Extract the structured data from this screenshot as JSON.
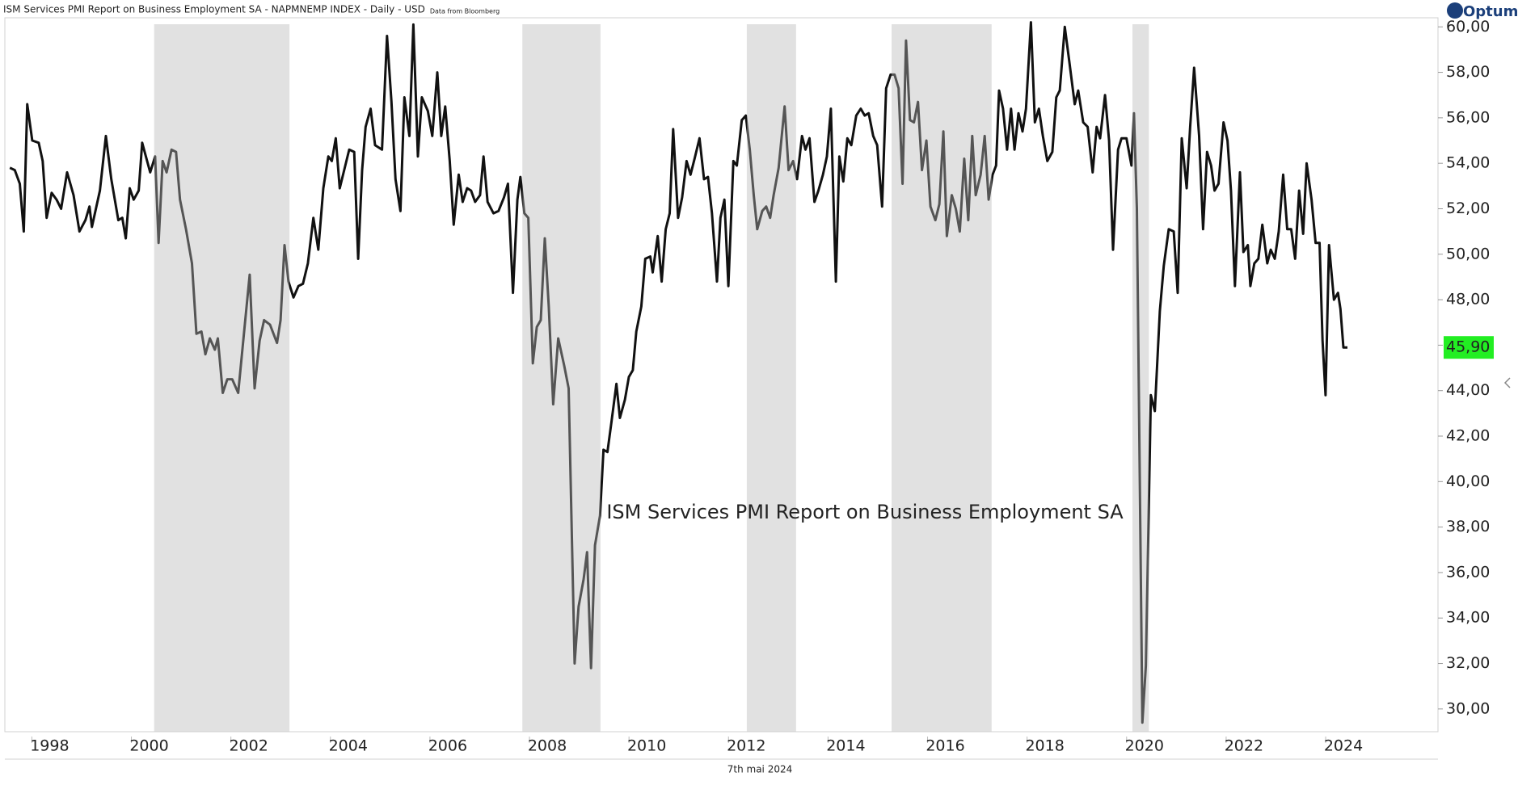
{
  "header": {
    "title": "ISM Services PMI Report on Business Employment SA - NAPMNEMP INDEX - Daily - USD",
    "source": "Data from Bloomberg",
    "logo": "Optuma",
    "date": "7th mai 2024"
  },
  "chart_data": {
    "type": "line",
    "annotation": "ISM Services PMI Report on Business Employment SA",
    "xlim": [
      1997.1,
      2025.9
    ],
    "ylim": [
      29,
      60.4
    ],
    "xticks": [
      1998,
      2000,
      2002,
      2004,
      2006,
      2008,
      2010,
      2012,
      2014,
      2016,
      2018,
      2020,
      2022,
      2024
    ],
    "yticks": [
      {
        "value": 30,
        "label": "30,00"
      },
      {
        "value": 32,
        "label": "32,00"
      },
      {
        "value": 34,
        "label": "34,00"
      },
      {
        "value": 36,
        "label": "36,00"
      },
      {
        "value": 38,
        "label": "38,00"
      },
      {
        "value": 40,
        "label": "40,00"
      },
      {
        "value": 42,
        "label": "42,00"
      },
      {
        "value": 44,
        "label": "44,00"
      },
      {
        "value": 46,
        "label": "46,00"
      },
      {
        "value": 48,
        "label": "48,00"
      },
      {
        "value": 50,
        "label": "50,00"
      },
      {
        "value": 52,
        "label": "52,00"
      },
      {
        "value": 54,
        "label": "54,00"
      },
      {
        "value": 56,
        "label": "56,00"
      },
      {
        "value": 58,
        "label": "58,00"
      },
      {
        "value": 60,
        "label": "60,00"
      }
    ],
    "shaded_ranges": [
      [
        2000.1,
        2002.82
      ],
      [
        2007.5,
        2009.07
      ],
      [
        2012.01,
        2013.0
      ],
      [
        2014.92,
        2016.93
      ],
      [
        2019.76,
        2020.09
      ]
    ],
    "shade_color": "#e1e1e1",
    "shaded_line_color": "#555555",
    "last_value_label": "45,90",
    "last_value_color": "#22ee22",
    "series": [
      {
        "name": "NAPMNEMP INDEX",
        "color": "#111111",
        "x": [
          1997.2,
          1997.3,
          1997.4,
          1997.48,
          1997.55,
          1997.65,
          1997.78,
          1997.86,
          1997.94,
          1998.04,
          1998.14,
          1998.23,
          1998.35,
          1998.48,
          1998.6,
          1998.72,
          1998.8,
          1998.85,
          1999.01,
          1999.13,
          1999.24,
          1999.38,
          1999.46,
          1999.53,
          1999.61,
          1999.69,
          1999.79,
          1999.86,
          2000.02,
          2000.12,
          2000.19,
          2000.27,
          2000.35,
          2000.45,
          2000.54,
          2000.62,
          2000.74,
          2000.86,
          2000.95,
          2001.05,
          2001.13,
          2001.22,
          2001.32,
          2001.38,
          2001.48,
          2001.57,
          2001.67,
          2001.79,
          2001.9,
          2002.02,
          2002.12,
          2002.22,
          2002.31,
          2002.43,
          2002.57,
          2002.64,
          2002.72,
          2002.8,
          2002.9,
          2003.0,
          2003.09,
          2003.19,
          2003.3,
          2003.4,
          2003.5,
          2003.6,
          2003.67,
          2003.75,
          2003.83,
          2003.93,
          2004.02,
          2004.12,
          2004.2,
          2004.28,
          2004.35,
          2004.45,
          2004.54,
          2004.68,
          2004.78,
          2004.87,
          2004.95,
          2005.05,
          2005.13,
          2005.23,
          2005.31,
          2005.4,
          2005.48,
          2005.6,
          2005.69,
          2005.79,
          2005.87,
          2005.95,
          2006.04,
          2006.12,
          2006.22,
          2006.3,
          2006.39,
          2006.47,
          2006.55,
          2006.65,
          2006.72,
          2006.8,
          2006.92,
          2007.02,
          2007.13,
          2007.21,
          2007.31,
          2007.4,
          2007.46,
          2007.54,
          2007.62,
          2007.71,
          2007.79,
          2007.87,
          2007.95,
          2008.03,
          2008.12,
          2008.22,
          2008.34,
          2008.43,
          2008.55,
          2008.63,
          2008.73,
          2008.8,
          2008.88,
          2008.96,
          2009.06,
          2009.13,
          2009.21,
          2009.29,
          2009.39,
          2009.46,
          2009.56,
          2009.64,
          2009.72,
          2009.79,
          2009.89,
          2009.97,
          2010.07,
          2010.12,
          2010.22,
          2010.3,
          2010.38,
          2010.46,
          2010.53,
          2010.63,
          2010.71,
          2010.8,
          2010.88,
          2010.96,
          2011.06,
          2011.15,
          2011.23,
          2011.31,
          2011.41,
          2011.48,
          2011.56,
          2011.64,
          2011.74,
          2011.81,
          2011.91,
          2011.99,
          2012.07,
          2012.15,
          2012.22,
          2012.32,
          2012.4,
          2012.48,
          2012.55,
          2012.65,
          2012.77,
          2012.85,
          2012.94,
          2013.02,
          2013.12,
          2013.19,
          2013.27,
          2013.37,
          2013.45,
          2013.54,
          2013.62,
          2013.7,
          2013.8,
          2013.87,
          2013.95,
          2014.03,
          2014.11,
          2014.21,
          2014.3,
          2014.38,
          2014.46,
          2014.55,
          2014.63,
          2014.73,
          2014.81,
          2014.9,
          2014.98,
          2015.06,
          2015.14,
          2015.21,
          2015.29,
          2015.37,
          2015.45,
          2015.53,
          2015.62,
          2015.7,
          2015.8,
          2015.88,
          2015.96,
          2016.03,
          2016.13,
          2016.21,
          2016.29,
          2016.38,
          2016.46,
          2016.54,
          2016.61,
          2016.71,
          2016.79,
          2016.87,
          2016.95,
          2017.02,
          2017.08,
          2017.16,
          2017.24,
          2017.32,
          2017.39,
          2017.47,
          2017.55,
          2017.62,
          2017.72,
          2017.8,
          2017.88,
          2017.96,
          2018.05,
          2018.15,
          2018.23,
          2018.3,
          2018.4,
          2018.49,
          2018.6,
          2018.67,
          2018.77,
          2018.86,
          2018.96,
          2019.04,
          2019.11,
          2019.21,
          2019.29,
          2019.37,
          2019.47,
          2019.54,
          2019.64,
          2019.74,
          2019.79,
          2019.85,
          2019.96,
          2020.03,
          2020.13,
          2020.21,
          2020.31,
          2020.39,
          2020.49,
          2020.59,
          2020.67,
          2020.75,
          2020.85,
          2020.92,
          2021.0,
          2021.1,
          2021.18,
          2021.26,
          2021.34,
          2021.41,
          2021.49,
          2021.59,
          2021.67,
          2021.74,
          2021.82,
          2021.92,
          2021.99,
          2022.08,
          2022.13,
          2022.21,
          2022.29,
          2022.37,
          2022.47,
          2022.54,
          2022.62,
          2022.7,
          2022.79,
          2022.87,
          2022.95,
          2023.03,
          2023.11,
          2023.19,
          2023.26,
          2023.36,
          2023.44,
          2023.52,
          2023.58,
          2023.64,
          2023.71,
          2023.81,
          2023.89,
          2023.94,
          2024.0,
          2024.08
        ],
        "values": [
          53.8,
          53.7,
          53.1,
          51.0,
          56.6,
          55.0,
          54.9,
          54.1,
          51.6,
          52.7,
          52.4,
          52.0,
          53.6,
          52.6,
          51.0,
          51.5,
          52.1,
          51.2,
          52.8,
          55.2,
          53.3,
          51.5,
          51.6,
          50.7,
          52.9,
          52.4,
          52.8,
          54.9,
          53.6,
          54.3,
          50.5,
          54.1,
          53.6,
          54.6,
          54.5,
          52.4,
          51.1,
          49.6,
          46.5,
          46.6,
          45.6,
          46.3,
          45.8,
          46.3,
          43.9,
          44.5,
          44.5,
          43.9,
          46.4,
          49.1,
          44.1,
          46.2,
          47.1,
          46.9,
          46.1,
          47.1,
          50.4,
          48.8,
          48.1,
          48.6,
          48.7,
          49.6,
          51.6,
          50.2,
          52.9,
          54.3,
          54.1,
          55.1,
          52.9,
          53.8,
          54.6,
          54.5,
          49.8,
          53.7,
          55.6,
          56.4,
          54.8,
          54.6,
          59.6,
          56.7,
          53.3,
          51.9,
          56.9,
          55.2,
          60.1,
          54.3,
          56.9,
          56.3,
          55.2,
          58.0,
          55.2,
          56.5,
          54.1,
          51.3,
          53.5,
          52.3,
          52.9,
          52.8,
          52.3,
          52.6,
          54.3,
          52.3,
          51.8,
          51.9,
          52.5,
          53.1,
          48.3,
          52.4,
          53.4,
          51.8,
          51.6,
          45.2,
          46.8,
          47.1,
          50.7,
          47.7,
          43.4,
          46.3,
          45.1,
          44.1,
          32.0,
          34.5,
          35.7,
          36.9,
          31.8,
          37.2,
          38.5,
          41.4,
          41.3,
          42.6,
          44.3,
          42.8,
          43.6,
          44.6,
          44.9,
          46.6,
          47.7,
          49.8,
          49.9,
          49.2,
          50.8,
          48.8,
          51.1,
          51.8,
          55.5,
          51.6,
          52.5,
          54.1,
          53.5,
          54.2,
          55.1,
          53.3,
          53.4,
          51.8,
          48.8,
          51.6,
          52.4,
          48.6,
          54.1,
          53.9,
          55.9,
          56.1,
          54.6,
          52.6,
          51.1,
          51.9,
          52.1,
          51.6,
          52.6,
          53.8,
          56.5,
          53.7,
          54.1,
          53.3,
          55.2,
          54.6,
          55.1,
          52.3,
          52.8,
          53.5,
          54.3,
          56.4,
          48.8,
          54.3,
          53.2,
          55.1,
          54.8,
          56.1,
          56.4,
          56.1,
          56.2,
          55.2,
          54.8,
          52.1,
          57.3,
          57.9,
          57.9,
          57.3,
          53.1,
          59.4,
          55.9,
          55.8,
          56.7,
          53.7,
          55.0,
          52.1,
          51.5,
          52.2,
          55.4,
          50.8,
          52.6,
          52.0,
          51.0,
          54.2,
          51.5,
          55.2,
          52.6,
          53.5,
          55.2,
          52.4,
          53.5,
          53.9,
          57.2,
          56.4,
          54.6,
          56.4,
          54.6,
          56.2,
          55.4,
          56.4,
          60.2,
          55.8,
          56.4,
          55.2,
          54.1,
          54.5,
          56.9,
          57.2,
          60.0,
          58.5,
          56.6,
          57.2,
          55.8,
          55.6,
          53.6,
          55.6,
          55.1,
          57.0,
          55.0,
          50.2,
          54.6,
          55.1,
          55.1,
          53.9,
          56.2,
          52.0,
          29.4,
          31.9,
          43.8,
          43.1,
          47.5,
          49.5,
          51.1,
          51.0,
          48.3,
          55.1,
          52.9,
          55.6,
          58.2,
          55.2,
          51.1,
          54.5,
          53.9,
          52.8,
          53.1,
          55.8,
          55.0,
          52.8,
          48.6,
          53.6,
          50.1,
          50.4,
          48.6,
          49.6,
          49.8,
          51.3,
          49.6,
          50.2,
          49.8,
          51.0,
          53.5,
          51.1,
          51.1,
          49.8,
          52.8,
          50.9,
          54.0,
          52.4,
          50.5,
          50.5,
          46.2,
          43.8,
          50.4,
          48.0,
          48.3,
          47.6,
          45.9,
          45.9
        ]
      }
    ]
  }
}
